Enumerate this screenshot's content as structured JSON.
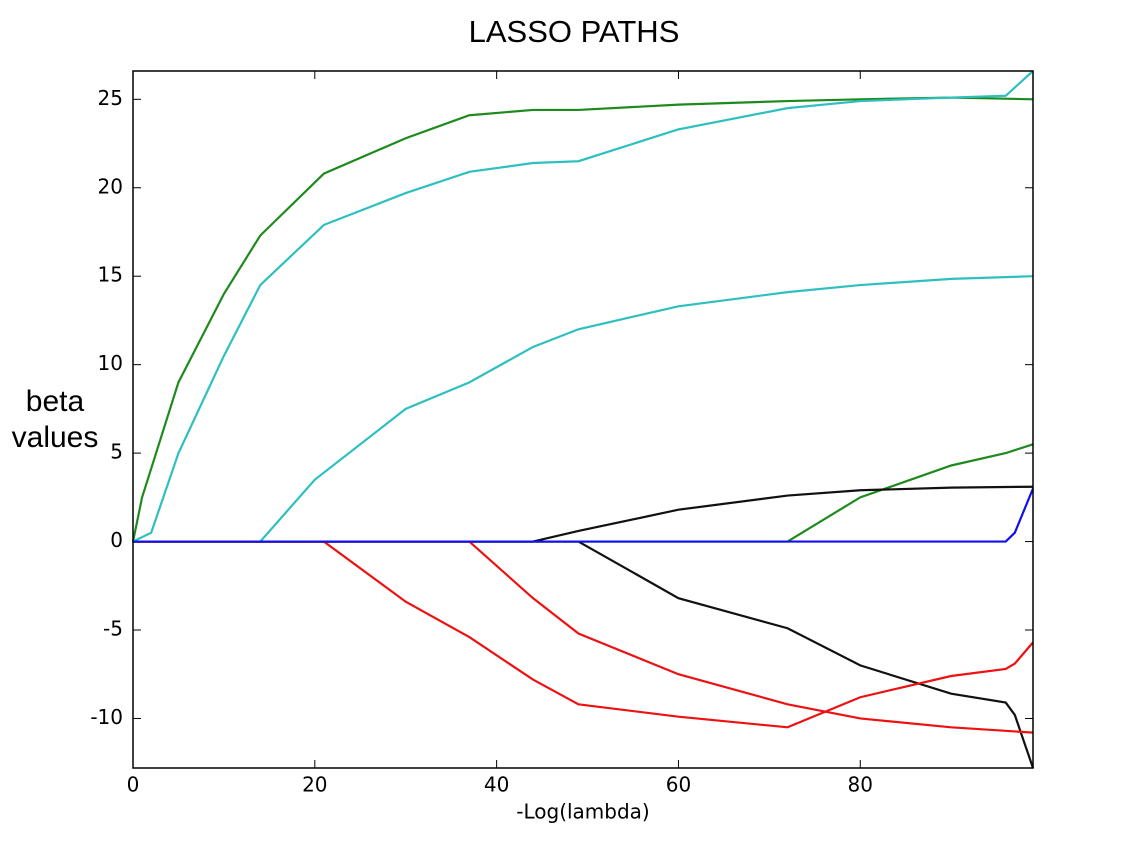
{
  "chart_data": {
    "type": "line",
    "title": "LASSO PATHS",
    "x_label": "-Log(lambda)",
    "y_label": "beta values",
    "xlim": [
      0,
      99
    ],
    "xticks": [
      0,
      20,
      40,
      60,
      80
    ],
    "ylim": [
      -12.8,
      26.6
    ],
    "yticks": [
      -10,
      -5,
      0,
      5,
      10,
      15,
      20,
      25
    ],
    "grid": false,
    "series": [
      {
        "color": "#1e8a1e",
        "x": [
          0,
          1,
          5,
          10,
          14,
          21,
          30,
          37,
          44,
          49,
          60,
          72,
          80,
          90,
          99
        ],
        "values": [
          0,
          2.5,
          9,
          14,
          17.3,
          20.8,
          22.8,
          24.1,
          24.4,
          24.4,
          24.7,
          24.9,
          25,
          25.1,
          25
        ]
      },
      {
        "color": "#2ebfbf",
        "x": [
          0,
          2,
          5,
          10,
          14,
          21,
          30,
          37,
          44,
          49,
          60,
          72,
          80,
          90,
          96,
          99
        ],
        "values": [
          0,
          0.5,
          5,
          10.5,
          14.5,
          17.9,
          19.7,
          20.9,
          21.4,
          21.5,
          23.3,
          24.5,
          24.9,
          25.1,
          25.2,
          26.6
        ]
      },
      {
        "color": "#2ebfbf",
        "x": [
          0,
          14,
          20,
          30,
          37,
          44,
          49,
          60,
          72,
          80,
          90,
          99
        ],
        "values": [
          0,
          0,
          3.5,
          7.5,
          9,
          11,
          12,
          13.3,
          14.1,
          14.5,
          14.85,
          15
        ]
      },
      {
        "color": "#1e8a1e",
        "x": [
          0,
          72,
          80,
          90,
          96,
          99
        ],
        "values": [
          0,
          0,
          2.5,
          4.3,
          5,
          5.5
        ]
      },
      {
        "color": "#111111",
        "x": [
          0,
          44,
          49,
          60,
          72,
          80,
          90,
          99
        ],
        "values": [
          0,
          0,
          0.6,
          1.8,
          2.6,
          2.9,
          3.05,
          3.1
        ]
      },
      {
        "color": "#111111",
        "x": [
          0,
          49,
          60,
          72,
          80,
          90,
          96,
          97,
          99
        ],
        "values": [
          0,
          0,
          -3.2,
          -4.9,
          -7,
          -8.6,
          -9.1,
          -9.8,
          -12.8
        ]
      },
      {
        "color": "#ee1111",
        "x": [
          0,
          21,
          30,
          37,
          44,
          49,
          60,
          72,
          80,
          90,
          96,
          97,
          99
        ],
        "values": [
          0,
          0,
          -3.4,
          -5.4,
          -7.8,
          -9.2,
          -9.9,
          -10.5,
          -8.8,
          -7.6,
          -7.2,
          -6.9,
          -5.7
        ]
      },
      {
        "color": "#ee1111",
        "x": [
          0,
          37,
          44,
          49,
          60,
          72,
          80,
          90,
          99
        ],
        "values": [
          0,
          0,
          -3.2,
          -5.2,
          -7.5,
          -9.2,
          -10,
          -10.5,
          -10.8
        ]
      },
      {
        "color": "#1010ee",
        "x": [
          0,
          96,
          97,
          99
        ],
        "values": [
          0,
          0,
          0.5,
          3
        ]
      }
    ]
  }
}
